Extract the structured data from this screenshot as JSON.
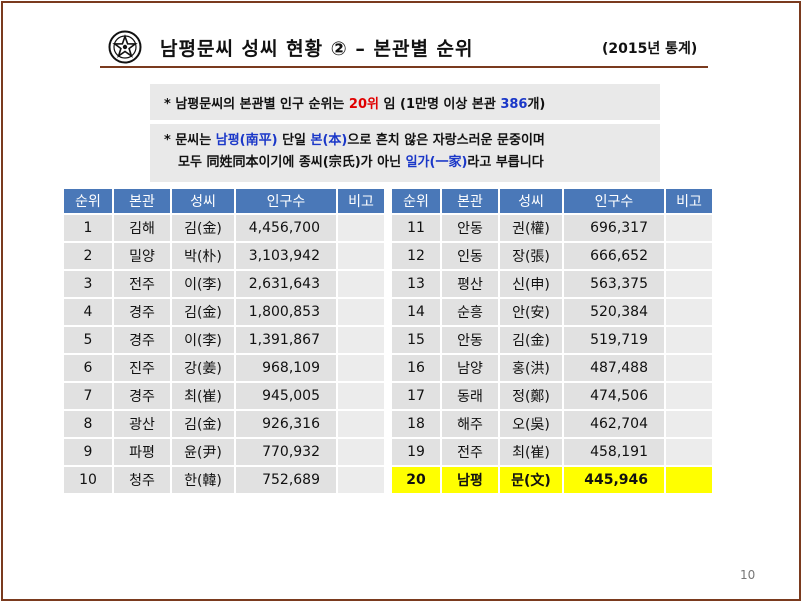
{
  "header": {
    "title": "남평문씨 성씨 현황 ② – 본관별 순위",
    "year_note": "(2015년 통계)"
  },
  "notes": {
    "line1": {
      "prefix": "* 남평문씨의 본관별 인구 순위는 ",
      "rank": "20위",
      "middle": " 임 (1만명 이상 본관 ",
      "count": "386",
      "suffix": "개)"
    },
    "line2": {
      "prefix": "* 문씨는 ",
      "bon": "남평(南平)",
      "mid": " 단일 ",
      "single": "본(本)",
      "suffix": "으로 흔치 않은 자랑스러운 문중이며"
    },
    "line3": {
      "prefix": "모두 同姓同本이기에 종씨(宗氏)가 아닌 ",
      "ilga": "일가(一家)",
      "suffix": "라고 부릅니다"
    }
  },
  "table": {
    "headers": [
      "순위",
      "본관",
      "성씨",
      "인구수",
      "비고"
    ],
    "left_rows": [
      {
        "rank": "1",
        "bon": "김해",
        "sung": "김(金)",
        "pop": "4,456,700"
      },
      {
        "rank": "2",
        "bon": "밀양",
        "sung": "박(朴)",
        "pop": "3,103,942"
      },
      {
        "rank": "3",
        "bon": "전주",
        "sung": "이(李)",
        "pop": "2,631,643"
      },
      {
        "rank": "4",
        "bon": "경주",
        "sung": "김(金)",
        "pop": "1,800,853"
      },
      {
        "rank": "5",
        "bon": "경주",
        "sung": "이(李)",
        "pop": "1,391,867"
      },
      {
        "rank": "6",
        "bon": "진주",
        "sung": "강(姜)",
        "pop": "968,109"
      },
      {
        "rank": "7",
        "bon": "경주",
        "sung": "최(崔)",
        "pop": "945,005"
      },
      {
        "rank": "8",
        "bon": "광산",
        "sung": "김(金)",
        "pop": "926,316"
      },
      {
        "rank": "9",
        "bon": "파평",
        "sung": "윤(尹)",
        "pop": "770,932"
      },
      {
        "rank": "10",
        "bon": "청주",
        "sung": "한(韓)",
        "pop": "752,689"
      }
    ],
    "right_rows": [
      {
        "rank": "11",
        "bon": "안동",
        "sung": "권(權)",
        "pop": "696,317"
      },
      {
        "rank": "12",
        "bon": "인동",
        "sung": "장(張)",
        "pop": "666,652"
      },
      {
        "rank": "13",
        "bon": "평산",
        "sung": "신(申)",
        "pop": "563,375"
      },
      {
        "rank": "14",
        "bon": "순흥",
        "sung": "안(安)",
        "pop": "520,384"
      },
      {
        "rank": "15",
        "bon": "안동",
        "sung": "김(金)",
        "pop": "519,719"
      },
      {
        "rank": "16",
        "bon": "남양",
        "sung": "홍(洪)",
        "pop": "487,488"
      },
      {
        "rank": "17",
        "bon": "동래",
        "sung": "정(鄭)",
        "pop": "474,506"
      },
      {
        "rank": "18",
        "bon": "해주",
        "sung": "오(吳)",
        "pop": "462,704"
      },
      {
        "rank": "19",
        "bon": "전주",
        "sung": "최(崔)",
        "pop": "458,191"
      },
      {
        "rank": "20",
        "bon": "남평",
        "sung": "문(文)",
        "pop": "445,946",
        "highlight": true
      }
    ]
  },
  "page_number": "10",
  "colors": {
    "frame": "#7a3a1e",
    "header_fill": "#4a78b8",
    "cell_fill": "#e1e1e1",
    "highlight": "#ffff00",
    "emphasis_red": "#e00000",
    "emphasis_blue": "#1a37c8"
  },
  "icons": {
    "emblem": "star-seal-emblem-icon"
  }
}
